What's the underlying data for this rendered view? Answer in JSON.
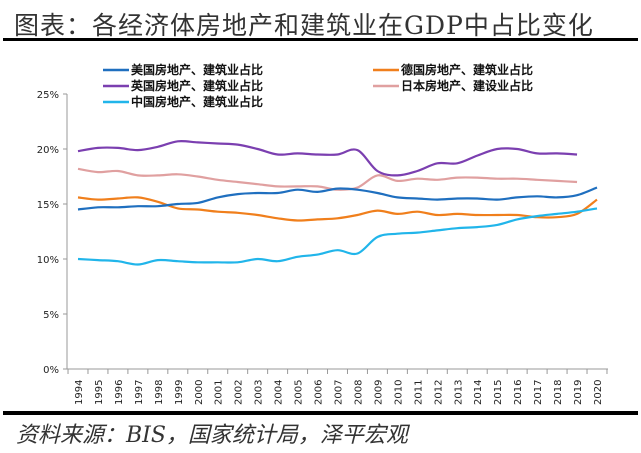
{
  "title": "图表：各经济体房地产和建筑业在GDP中占比变化",
  "source": "资料来源：BIS，国家统计局，泽平宏观",
  "chart_data": {
    "type": "line",
    "title": "图表：各经济体房地产和建筑业在GDP中占比变化",
    "xlabel": "",
    "ylabel": "",
    "ylim": [
      0,
      25
    ],
    "yticks": [
      "0%",
      "5%",
      "10%",
      "15%",
      "20%",
      "25%"
    ],
    "grid": false,
    "legend": "top",
    "categories": [
      "1994",
      "1995",
      "1996",
      "1997",
      "1998",
      "1999",
      "2000",
      "2001",
      "2002",
      "2003",
      "2004",
      "2005",
      "2006",
      "2007",
      "2008",
      "2009",
      "2010",
      "2011",
      "2012",
      "2013",
      "2014",
      "2015",
      "2016",
      "2017",
      "2018",
      "2019",
      "2020"
    ],
    "series": [
      {
        "name": "美国房地产、建筑业占比",
        "color": "#1f6fbf",
        "values": [
          14.5,
          14.7,
          14.7,
          14.8,
          14.8,
          15.0,
          15.1,
          15.6,
          15.9,
          16.0,
          16.0,
          16.3,
          16.1,
          16.4,
          16.3,
          16.0,
          15.6,
          15.5,
          15.4,
          15.5,
          15.5,
          15.4,
          15.6,
          15.7,
          15.6,
          15.8,
          16.5
        ]
      },
      {
        "name": "德国房地产、建筑业占比",
        "color": "#f07f1c",
        "values": [
          15.6,
          15.4,
          15.5,
          15.6,
          15.2,
          14.6,
          14.5,
          14.3,
          14.2,
          14.0,
          13.7,
          13.5,
          13.6,
          13.7,
          14.0,
          14.4,
          14.1,
          14.3,
          14.0,
          14.1,
          14.0,
          14.0,
          14.0,
          13.8,
          13.8,
          14.1,
          15.4
        ]
      },
      {
        "name": "英国房地产、建筑业占比",
        "color": "#7b3fb0",
        "values": [
          19.8,
          20.1,
          20.1,
          19.9,
          20.2,
          20.7,
          20.6,
          20.5,
          20.4,
          20.0,
          19.5,
          19.6,
          19.5,
          19.5,
          19.9,
          18.0,
          17.6,
          18.0,
          18.7,
          18.7,
          19.4,
          20.0,
          20.0,
          19.6,
          19.6,
          19.5,
          null
        ]
      },
      {
        "name": "日本房地产、建设业占比",
        "color": "#e0a0a0",
        "values": [
          18.2,
          17.9,
          18.0,
          17.6,
          17.6,
          17.7,
          17.5,
          17.2,
          17.0,
          16.8,
          16.6,
          16.6,
          16.6,
          16.3,
          16.5,
          17.6,
          17.1,
          17.3,
          17.2,
          17.4,
          17.4,
          17.3,
          17.3,
          17.2,
          17.1,
          17.0,
          null
        ]
      },
      {
        "name": "中国房地产、建筑业占比",
        "color": "#21b5ea",
        "values": [
          10.0,
          9.9,
          9.8,
          9.5,
          9.9,
          9.8,
          9.7,
          9.7,
          9.7,
          10.0,
          9.8,
          10.2,
          10.4,
          10.8,
          10.5,
          12.0,
          12.3,
          12.4,
          12.6,
          12.8,
          12.9,
          13.1,
          13.6,
          13.9,
          14.1,
          14.3,
          14.6
        ]
      }
    ]
  }
}
